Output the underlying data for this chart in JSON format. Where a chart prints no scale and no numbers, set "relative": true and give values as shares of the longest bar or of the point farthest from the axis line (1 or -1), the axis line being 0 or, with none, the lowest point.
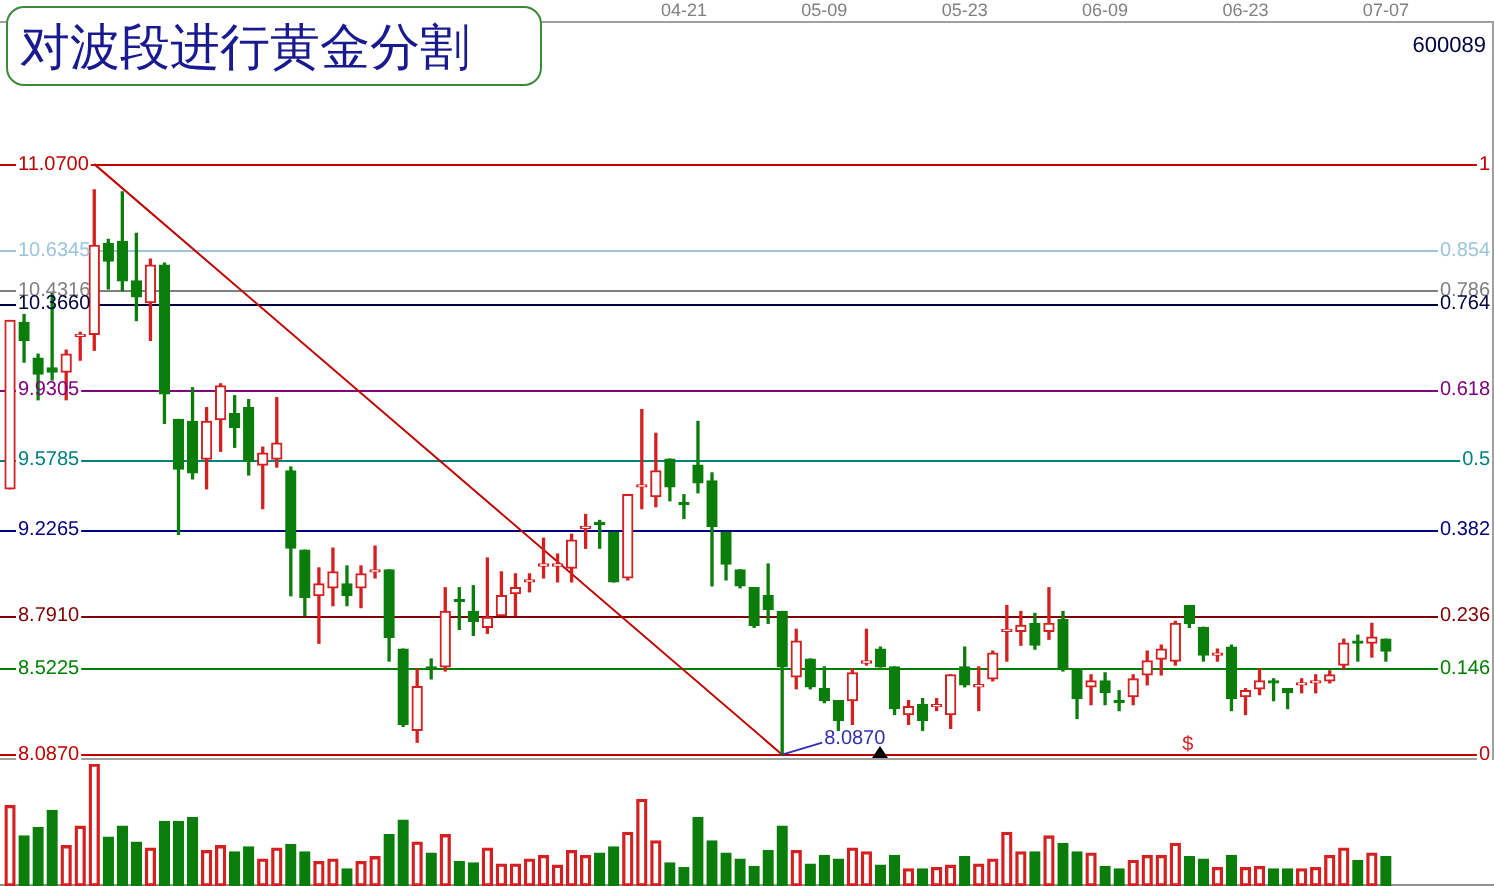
{
  "chart_data": [
    {
      "type": "candlestick",
      "title": "对波段进行黄金分割",
      "subtitle": "600089",
      "categories": [
        null,
        null,
        null,
        null,
        null,
        null,
        null,
        null,
        null,
        null,
        null,
        null,
        null,
        null,
        null,
        null,
        null,
        null,
        null,
        null,
        null,
        null,
        null,
        null,
        null,
        null,
        null,
        null,
        null,
        null,
        null,
        null,
        null,
        null,
        null,
        null,
        null,
        null,
        null,
        null,
        null,
        null,
        null,
        null,
        null,
        null,
        null,
        null,
        "04-21",
        null,
        null,
        null,
        null,
        null,
        null,
        null,
        null,
        null,
        "05-09",
        null,
        null,
        null,
        null,
        null,
        null,
        null,
        null,
        null,
        "05-23",
        null,
        null,
        null,
        null,
        null,
        null,
        null,
        null,
        null,
        "06-09",
        null,
        null,
        null,
        null,
        null,
        null,
        null,
        null,
        null,
        "06-23",
        null,
        null,
        null,
        null,
        null,
        null,
        null,
        null,
        null,
        "07-07"
      ],
      "ohlc": [
        [
          9.43,
          10.28,
          9.43,
          10.28
        ],
        [
          10.27,
          10.31,
          10.07,
          10.18
        ],
        [
          10.09,
          10.11,
          9.88,
          10.01
        ],
        [
          10.04,
          10.42,
          9.98,
          10.02
        ],
        [
          10.02,
          10.13,
          9.88,
          10.11
        ],
        [
          10.2,
          10.22,
          10.08,
          10.21
        ],
        [
          10.21,
          10.94,
          10.13,
          10.66
        ],
        [
          10.67,
          10.69,
          10.44,
          10.58
        ],
        [
          10.68,
          10.93,
          10.43,
          10.48
        ],
        [
          10.48,
          10.72,
          10.28,
          10.4
        ],
        [
          10.37,
          10.59,
          10.18,
          10.56
        ],
        [
          10.56,
          10.57,
          9.76,
          9.91
        ],
        [
          9.78,
          9.78,
          9.2,
          9.53
        ],
        [
          9.77,
          9.94,
          9.48,
          9.51
        ],
        [
          9.58,
          9.84,
          9.43,
          9.77
        ],
        [
          9.78,
          9.96,
          9.62,
          9.95
        ],
        [
          9.81,
          9.9,
          9.64,
          9.74
        ],
        [
          9.84,
          9.88,
          9.5,
          9.57
        ],
        [
          9.55,
          9.64,
          9.33,
          9.61
        ],
        [
          9.58,
          9.89,
          9.54,
          9.66
        ],
        [
          9.52,
          9.54,
          8.89,
          9.13
        ],
        [
          9.12,
          9.12,
          8.79,
          8.88
        ],
        [
          8.89,
          9.03,
          8.65,
          8.95
        ],
        [
          8.93,
          9.13,
          8.84,
          9.01
        ],
        [
          8.95,
          9.04,
          8.84,
          8.89
        ],
        [
          8.93,
          9.04,
          8.83,
          9.0
        ],
        [
          9.01,
          9.14,
          8.98,
          9.02
        ],
        [
          9.02,
          9.02,
          8.56,
          8.68
        ],
        [
          8.62,
          8.62,
          8.23,
          8.24
        ],
        [
          8.21,
          8.52,
          8.15,
          8.43
        ],
        [
          8.53,
          8.57,
          8.47,
          8.52
        ],
        [
          8.53,
          8.93,
          8.51,
          8.81
        ],
        [
          8.87,
          8.93,
          8.72,
          8.86
        ],
        [
          8.81,
          8.94,
          8.69,
          8.76
        ],
        [
          8.73,
          9.08,
          8.7,
          8.78
        ],
        [
          8.79,
          9.01,
          8.79,
          8.89
        ],
        [
          8.9,
          9.0,
          8.79,
          8.93
        ],
        [
          8.96,
          9.0,
          8.91,
          8.97
        ],
        [
          9.04,
          9.18,
          8.98,
          9.05
        ],
        [
          9.04,
          9.1,
          8.96,
          9.05
        ],
        [
          9.03,
          9.2,
          8.96,
          9.17
        ],
        [
          9.23,
          9.3,
          9.13,
          9.24
        ],
        [
          9.26,
          9.27,
          9.13,
          9.25
        ],
        [
          9.21,
          9.21,
          8.96,
          8.96
        ],
        [
          8.98,
          9.4,
          8.97,
          9.4
        ],
        [
          9.44,
          9.83,
          9.33,
          9.45
        ],
        [
          9.39,
          9.71,
          9.34,
          9.52
        ],
        [
          9.58,
          9.58,
          9.37,
          9.44
        ],
        [
          9.36,
          9.4,
          9.28,
          9.35
        ],
        [
          9.55,
          9.77,
          9.41,
          9.46
        ],
        [
          9.47,
          9.51,
          8.94,
          9.24
        ],
        [
          9.21,
          9.21,
          8.97,
          9.05
        ],
        [
          9.02,
          9.02,
          8.93,
          8.94
        ],
        [
          8.93,
          8.93,
          8.73,
          8.74
        ],
        [
          8.89,
          9.05,
          8.75,
          8.82
        ],
        [
          8.81,
          8.81,
          8.087,
          8.53
        ],
        [
          8.48,
          8.72,
          8.42,
          8.66
        ],
        [
          8.57,
          8.57,
          8.42,
          8.43
        ],
        [
          8.42,
          8.53,
          8.35,
          8.36
        ],
        [
          8.36,
          8.36,
          8.21,
          8.26
        ],
        [
          8.36,
          8.52,
          8.24,
          8.5
        ],
        [
          8.55,
          8.72,
          8.54,
          8.56
        ],
        [
          8.62,
          8.63,
          8.53,
          8.53
        ],
        [
          8.53,
          8.53,
          8.29,
          8.32
        ],
        [
          8.29,
          8.36,
          8.24,
          8.33
        ],
        [
          8.34,
          8.37,
          8.21,
          8.26
        ],
        [
          8.33,
          8.37,
          8.31,
          8.34
        ],
        [
          8.29,
          8.49,
          8.22,
          8.49
        ],
        [
          8.53,
          8.63,
          8.43,
          8.44
        ],
        [
          8.43,
          8.53,
          8.31,
          8.44
        ],
        [
          8.47,
          8.61,
          8.46,
          8.6
        ],
        [
          8.71,
          8.84,
          8.56,
          8.72
        ],
        [
          8.71,
          8.81,
          8.64,
          8.74
        ],
        [
          8.75,
          8.8,
          8.62,
          8.64
        ],
        [
          8.71,
          8.93,
          8.67,
          8.75
        ],
        [
          8.77,
          8.81,
          8.51,
          8.52
        ],
        [
          8.52,
          8.52,
          8.27,
          8.37
        ],
        [
          8.43,
          8.49,
          8.34,
          8.46
        ],
        [
          8.46,
          8.5,
          8.34,
          8.4
        ],
        [
          8.36,
          8.41,
          8.31,
          8.35
        ],
        [
          8.38,
          8.49,
          8.34,
          8.47
        ],
        [
          8.49,
          8.61,
          8.44,
          8.56
        ],
        [
          8.57,
          8.64,
          8.49,
          8.62
        ],
        [
          8.56,
          8.76,
          8.54,
          8.75
        ],
        [
          8.84,
          8.84,
          8.73,
          8.75
        ],
        [
          8.73,
          8.73,
          8.56,
          8.59
        ],
        [
          8.59,
          8.62,
          8.56,
          8.6
        ],
        [
          8.63,
          8.64,
          8.31,
          8.37
        ],
        [
          8.38,
          8.42,
          8.29,
          8.41
        ],
        [
          8.42,
          8.52,
          8.39,
          8.46
        ],
        [
          8.46,
          8.47,
          8.36,
          8.45
        ],
        [
          8.42,
          8.42,
          8.32,
          8.4
        ],
        [
          8.44,
          8.47,
          8.4,
          8.45
        ],
        [
          8.45,
          8.49,
          8.4,
          8.46
        ],
        [
          8.46,
          8.51,
          8.45,
          8.49
        ],
        [
          8.54,
          8.67,
          8.52,
          8.65
        ],
        [
          8.66,
          8.69,
          8.56,
          8.65
        ],
        [
          8.65,
          8.75,
          8.58,
          8.68
        ],
        [
          8.67,
          8.67,
          8.56,
          8.61
        ]
      ],
      "colors": [
        "#d42020",
        "#0a7d0a",
        "#0a7d0a",
        "#0a7d0a",
        "#d42020",
        "#d42020",
        "#d42020",
        "#0a7d0a",
        "#0a7d0a",
        "#0a7d0a",
        "#d42020",
        "#0a7d0a",
        "#0a7d0a",
        "#0a7d0a",
        "#d42020",
        "#d42020",
        "#0a7d0a",
        "#0a7d0a",
        "#d42020",
        "#d42020",
        "#0a7d0a",
        "#0a7d0a",
        "#d42020",
        "#d42020",
        "#0a7d0a",
        "#d42020",
        "#d42020",
        "#0a7d0a",
        "#0a7d0a",
        "#d42020",
        "#0a7d0a",
        "#d42020",
        "#0a7d0a",
        "#0a7d0a",
        "#d42020",
        "#d42020",
        "#d42020",
        "#d42020",
        "#d42020",
        "#d42020",
        "#d42020",
        "#d42020",
        "#0a7d0a",
        "#0a7d0a",
        "#d42020",
        "#d42020",
        "#d42020",
        "#0a7d0a",
        "#0a7d0a",
        "#0a7d0a",
        "#0a7d0a",
        "#0a7d0a",
        "#0a7d0a",
        "#0a7d0a",
        "#0a7d0a",
        "#0a7d0a",
        "#d42020",
        "#0a7d0a",
        "#0a7d0a",
        "#0a7d0a",
        "#d42020",
        "#d42020",
        "#0a7d0a",
        "#0a7d0a",
        "#d42020",
        "#0a7d0a",
        "#d42020",
        "#d42020",
        "#0a7d0a",
        "#d42020",
        "#d42020",
        "#d42020",
        "#d42020",
        "#0a7d0a",
        "#d42020",
        "#0a7d0a",
        "#0a7d0a",
        "#d42020",
        "#0a7d0a",
        "#0a7d0a",
        "#d42020",
        "#d42020",
        "#d42020",
        "#d42020",
        "#0a7d0a",
        "#0a7d0a",
        "#d42020",
        "#0a7d0a",
        "#d42020",
        "#d42020",
        "#0a7d0a",
        "#0a7d0a",
        "#d42020",
        "#d42020",
        "#d42020",
        "#d42020",
        "#0a7d0a",
        "#d42020",
        "#0a7d0a"
      ],
      "series": [
        {
          "type": "line",
          "color": "#c00000",
          "values": [
            null,
            null,
            null,
            null,
            null,
            null,
            11.07,
            null,
            null,
            null,
            null,
            null,
            null,
            null,
            null,
            null,
            null,
            null,
            null,
            null,
            null,
            null,
            null,
            null,
            null,
            null,
            null,
            null,
            null,
            null,
            null,
            null,
            null,
            null,
            null,
            null,
            null,
            null,
            null,
            null,
            null,
            null,
            null,
            null,
            null,
            null,
            null,
            null,
            null,
            null,
            null,
            null,
            null,
            null,
            null,
            8.087,
            null,
            null,
            null,
            null,
            null,
            null,
            null,
            null,
            null,
            null,
            null,
            null,
            null,
            null,
            null,
            null,
            null,
            null,
            null,
            null,
            null,
            null,
            null,
            null,
            null,
            null,
            null,
            null,
            null,
            null,
            null,
            null,
            null,
            null,
            null,
            null,
            null,
            null,
            null,
            null,
            null,
            null,
            null
          ]
        }
      ],
      "ylim": [
        8.06,
        11.79
      ],
      "yticks": [
        {
          "value": 11.07,
          "label": "11.0700"
        },
        {
          "value": 10.6345,
          "label": "10.6345"
        },
        {
          "value": 10.4316,
          "label": "10.4316"
        },
        {
          "value": 10.366,
          "label": "10.3660"
        },
        {
          "value": 9.9305,
          "label": "9.9305"
        },
        {
          "value": 9.5785,
          "label": "9.5785"
        },
        {
          "value": 9.2265,
          "label": "9.2265"
        },
        {
          "value": 8.791,
          "label": "8.7910"
        },
        {
          "value": 8.5225,
          "label": "8.5225"
        },
        {
          "value": 8.087,
          "label": "8.0870"
        }
      ],
      "y2lim": [
        -0.009,
        1.2413
      ],
      "y2ticks": [
        1,
        0.854,
        0.786,
        0.764,
        0.618,
        0.5,
        0.382,
        0.236,
        0.146,
        0
      ],
      "ref_lines": [
        {
          "axis": "y",
          "value": 11.07,
          "color": "#c00000"
        },
        {
          "axis": "y",
          "value": 10.6345,
          "color": "#9cc4dc"
        },
        {
          "axis": "y",
          "value": 10.4316,
          "color": "#808080"
        },
        {
          "axis": "y",
          "value": 10.366,
          "color": "#000040"
        },
        {
          "axis": "y",
          "value": 9.9305,
          "color": "#800080"
        },
        {
          "axis": "y",
          "value": 9.5785,
          "color": "#008080"
        },
        {
          "axis": "y",
          "value": 9.2265,
          "color": "#000080"
        },
        {
          "axis": "y",
          "value": 8.791,
          "color": "#800000"
        },
        {
          "axis": "y",
          "value": 8.5225,
          "color": "#008000"
        },
        {
          "axis": "y",
          "value": 8.087,
          "color": "#c00000"
        }
      ],
      "annotations": [
        {
          "text": "8.0870",
          "y": 8.087
        },
        "$"
      ]
    },
    {
      "type": "bar",
      "relative": true,
      "values": [
        0.66,
        0.41,
        0.48,
        0.62,
        0.33,
        0.49,
        1,
        0.4,
        0.49,
        0.36,
        0.31,
        0.53,
        0.53,
        0.56,
        0.29,
        0.33,
        0.28,
        0.32,
        0.22,
        0.31,
        0.34,
        0.28,
        0.2,
        0.22,
        0.14,
        0.2,
        0.24,
        0.42,
        0.54,
        0.36,
        0.27,
        0.42,
        0.2,
        0.19,
        0.31,
        0.18,
        0.18,
        0.22,
        0.25,
        0.17,
        0.29,
        0.25,
        0.27,
        0.32,
        0.44,
        0.71,
        0.37,
        0.19,
        0.15,
        0.56,
        0.37,
        0.27,
        0.22,
        0.16,
        0.29,
        0.49,
        0.29,
        0.18,
        0.25,
        0.22,
        0.31,
        0.28,
        0.17,
        0.25,
        0.14,
        0.14,
        0.15,
        0.17,
        0.24,
        0.18,
        0.22,
        0.44,
        0.28,
        0.28,
        0.41,
        0.35,
        0.28,
        0.27,
        0.16,
        0.14,
        0.21,
        0.25,
        0.25,
        0.35,
        0.24,
        0.22,
        0.15,
        0.25,
        0.15,
        0.16,
        0.14,
        0.14,
        0.14,
        0.15,
        0.25,
        0.31,
        0.21,
        0.27,
        0.24
      ],
      "colors": [
        "#d42020",
        "#0a7d0a",
        "#0a7d0a",
        "#0a7d0a",
        "#d42020",
        "#d42020",
        "#d42020",
        "#0a7d0a",
        "#0a7d0a",
        "#0a7d0a",
        "#d42020",
        "#0a7d0a",
        "#0a7d0a",
        "#0a7d0a",
        "#d42020",
        "#d42020",
        "#0a7d0a",
        "#0a7d0a",
        "#d42020",
        "#d42020",
        "#0a7d0a",
        "#0a7d0a",
        "#d42020",
        "#d42020",
        "#0a7d0a",
        "#d42020",
        "#d42020",
        "#0a7d0a",
        "#0a7d0a",
        "#d42020",
        "#0a7d0a",
        "#d42020",
        "#0a7d0a",
        "#0a7d0a",
        "#d42020",
        "#d42020",
        "#d42020",
        "#d42020",
        "#d42020",
        "#d42020",
        "#d42020",
        "#d42020",
        "#0a7d0a",
        "#0a7d0a",
        "#d42020",
        "#d42020",
        "#d42020",
        "#0a7d0a",
        "#0a7d0a",
        "#0a7d0a",
        "#0a7d0a",
        "#0a7d0a",
        "#0a7d0a",
        "#0a7d0a",
        "#0a7d0a",
        "#0a7d0a",
        "#d42020",
        "#0a7d0a",
        "#0a7d0a",
        "#0a7d0a",
        "#d42020",
        "#d42020",
        "#0a7d0a",
        "#0a7d0a",
        "#d42020",
        "#0a7d0a",
        "#d42020",
        "#d42020",
        "#0a7d0a",
        "#d42020",
        "#d42020",
        "#d42020",
        "#d42020",
        "#0a7d0a",
        "#d42020",
        "#0a7d0a",
        "#0a7d0a",
        "#d42020",
        "#0a7d0a",
        "#0a7d0a",
        "#d42020",
        "#d42020",
        "#d42020",
        "#d42020",
        "#0a7d0a",
        "#0a7d0a",
        "#d42020",
        "#0a7d0a",
        "#d42020",
        "#d42020",
        "#0a7d0a",
        "#0a7d0a",
        "#d42020",
        "#d42020",
        "#d42020",
        "#d42020",
        "#0a7d0a",
        "#d42020",
        "#0a7d0a"
      ]
    }
  ]
}
